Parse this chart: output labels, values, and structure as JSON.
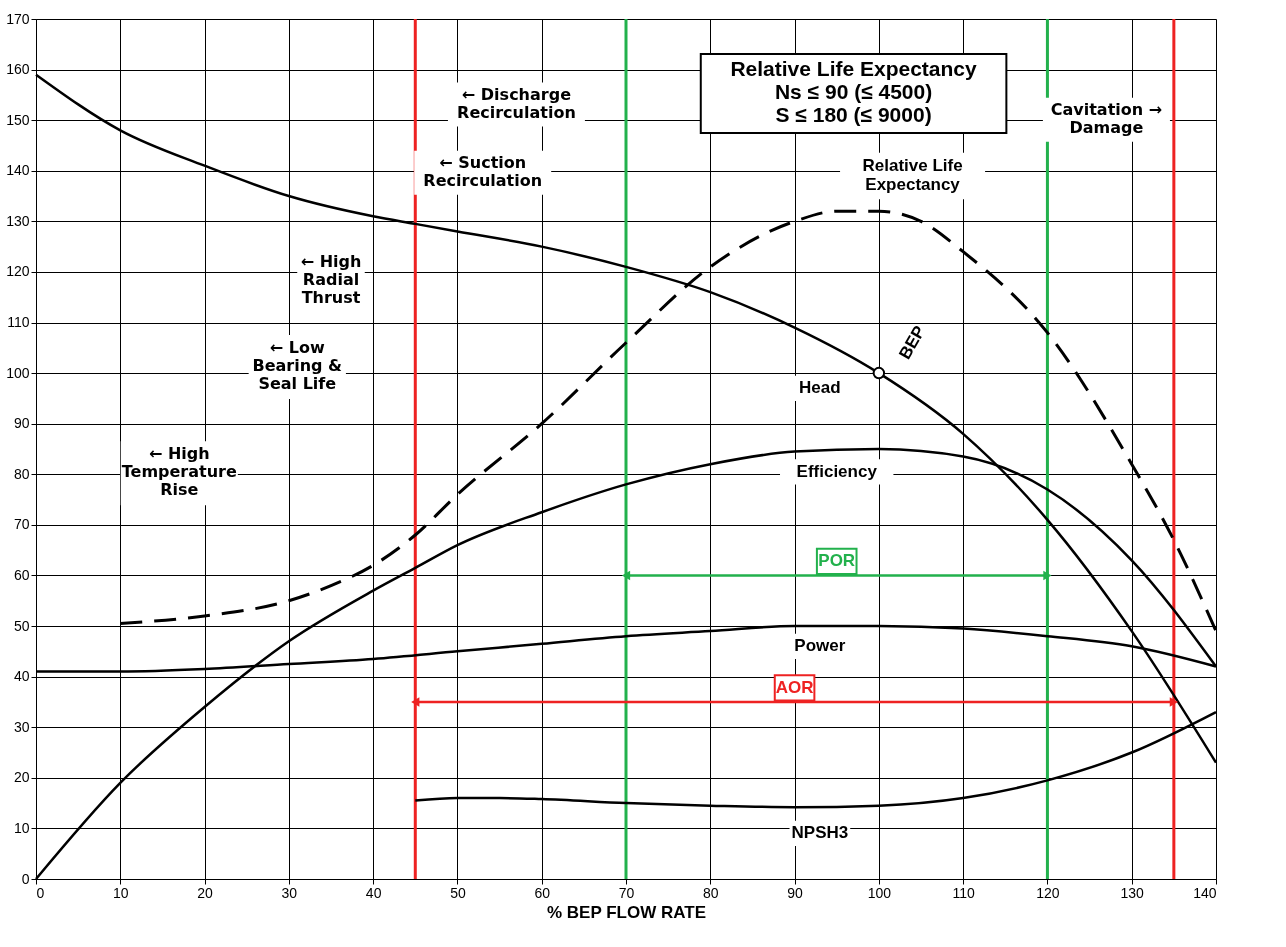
{
  "chart_data": {
    "type": "line",
    "title": "Relative Life Expectancy\nNs ≤ 90 (≤ 4500)\nS ≤ 180 (≤ 9000)",
    "xlabel": "% BEP FLOW RATE",
    "xlim": [
      0,
      140
    ],
    "ylim": [
      0,
      170
    ],
    "xticks": [
      0,
      10,
      20,
      30,
      40,
      50,
      60,
      70,
      80,
      90,
      100,
      110,
      120,
      130,
      140
    ],
    "yticks": [
      0,
      10,
      20,
      30,
      40,
      50,
      60,
      70,
      80,
      90,
      100,
      110,
      120,
      130,
      140,
      150,
      160,
      170
    ],
    "grid": true,
    "line_style": "solid",
    "marker": "none",
    "series": [
      {
        "name": "Head",
        "color": "#000000",
        "x": [
          0,
          10,
          20,
          30,
          40,
          45,
          50,
          60,
          70,
          80,
          90,
          100,
          110,
          120,
          130,
          140
        ],
        "values": [
          159,
          148,
          141,
          135,
          131,
          129.5,
          128,
          125,
          121,
          116,
          109,
          100,
          88,
          71,
          49,
          23
        ]
      },
      {
        "name": "Efficiency",
        "color": "#000000",
        "x": [
          0,
          10,
          20,
          30,
          40,
          45,
          50,
          60,
          70,
          80,
          90,
          100,
          110,
          120,
          130,
          140
        ],
        "values": [
          0,
          19,
          34,
          47,
          57,
          61.5,
          66,
          72.5,
          78,
          82,
          84.5,
          85,
          83.5,
          77,
          63,
          42
        ]
      },
      {
        "name": "Power",
        "color": "#000000",
        "x": [
          0,
          10,
          20,
          30,
          40,
          50,
          60,
          70,
          80,
          90,
          100,
          110,
          120,
          130,
          140
        ],
        "values": [
          41,
          41,
          41.5,
          42.5,
          43.5,
          45,
          46.5,
          48,
          49,
          50,
          50,
          49.5,
          48,
          46,
          42
        ]
      },
      {
        "name": "NPSH3",
        "color": "#000000",
        "x": [
          45,
          50,
          55,
          60,
          70,
          80,
          90,
          100,
          110,
          120,
          130,
          140
        ],
        "values": [
          15.5,
          16,
          16,
          15.8,
          15,
          14.5,
          14.2,
          14.5,
          16,
          19.5,
          25,
          33
        ]
      },
      {
        "name": "Relative Life\nExpectancy",
        "color": "#000000",
        "line_style": "dashed",
        "x": [
          10,
          20,
          30,
          35,
          40,
          45,
          50,
          60,
          70,
          80,
          90,
          95,
          100,
          105,
          110,
          120,
          130,
          135,
          140
        ],
        "values": [
          50.5,
          52,
          55,
          58,
          62,
          68,
          76,
          90,
          106,
          121,
          130,
          132,
          132,
          130,
          124,
          108,
          82,
          67,
          49
        ]
      },
      {
        "name": "BEP",
        "type": "scatter",
        "marker": "circle",
        "color": "#000000",
        "x": [
          100
        ],
        "values": [
          100
        ]
      },
      {
        "name": "POR",
        "color": "#22b14c",
        "marker": "triangle",
        "x": [
          70,
          120
        ],
        "values": [
          60,
          60
        ]
      },
      {
        "name": "AOR",
        "color": "#ee2222",
        "marker": "triangle",
        "x": [
          45,
          135
        ],
        "values": [
          35,
          35
        ]
      }
    ],
    "ref_lines": [
      {
        "axis": "x",
        "value": 45,
        "color": "#ee2222"
      },
      {
        "axis": "x",
        "value": 135,
        "color": "#ee2222"
      },
      {
        "axis": "x",
        "value": 70,
        "color": "#22b14c"
      },
      {
        "axis": "x",
        "value": 120,
        "color": "#22b14c"
      }
    ],
    "annotations": [
      "← Discharge\nRecirculation",
      "← Suction\nRecirculation",
      "← High\nRadial\nThrust",
      "← Low\nBearing &\nSeal Life",
      "← High\nTemperature\nRise",
      "Cavitation →\nDamage"
    ]
  }
}
